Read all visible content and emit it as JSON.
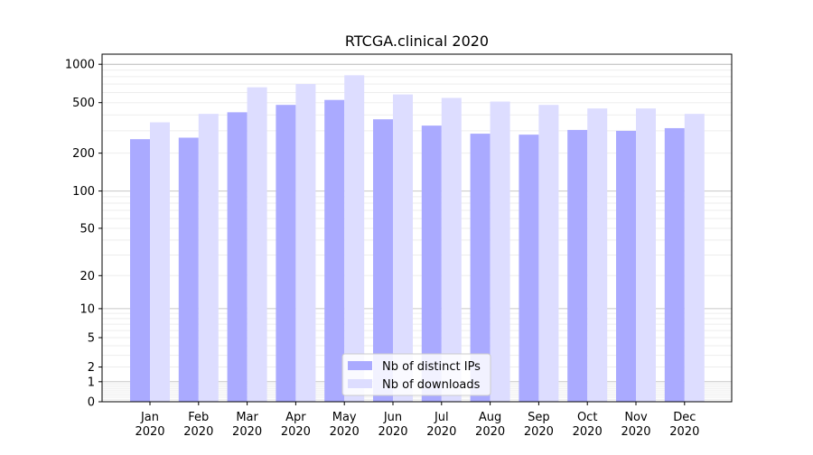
{
  "chart_data": {
    "type": "bar",
    "title": "RTCGA.clinical 2020",
    "xlabel": "",
    "ylabel": "",
    "y_scale": "symlog",
    "ylim": [
      0,
      1200
    ],
    "y_ticks": [
      0,
      1,
      2,
      5,
      10,
      20,
      50,
      100,
      200,
      500,
      1000
    ],
    "y_tick_labels": [
      "0",
      "1",
      "2",
      "5",
      "10",
      "20",
      "50",
      "100",
      "200",
      "500",
      "1000"
    ],
    "categories": [
      "Jan\n2020",
      "Feb\n2020",
      "Mar\n2020",
      "Apr\n2020",
      "May\n2020",
      "Jun\n2020",
      "Jul\n2020",
      "Aug\n2020",
      "Sep\n2020",
      "Oct\n2020",
      "Nov\n2020",
      "Dec\n2020"
    ],
    "series": [
      {
        "name": "Nb of distinct IPs",
        "color": "#aaaaff",
        "values": [
          258,
          265,
          420,
          480,
          525,
          370,
          330,
          285,
          280,
          305,
          300,
          315
        ]
      },
      {
        "name": "Nb of downloads",
        "color": "#ddddff",
        "values": [
          350,
          408,
          660,
          700,
          820,
          580,
          545,
          510,
          480,
          450,
          450,
          408
        ]
      }
    ],
    "grid": true,
    "legend_position": "lower center"
  }
}
